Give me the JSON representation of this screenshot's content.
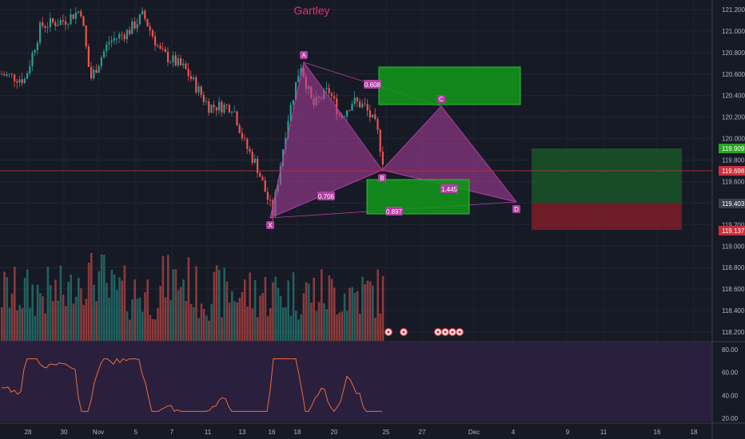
{
  "chart_data": {
    "type": "candlestick",
    "title": "Gartley",
    "pattern": {
      "name": "Gartley",
      "points": [
        {
          "label": "X",
          "x": "Nov 16",
          "y": 119.28
        },
        {
          "label": "A",
          "x": "Nov 18",
          "y": 120.75
        },
        {
          "label": "B",
          "x": "Nov 24",
          "y": 119.68
        },
        {
          "label": "C",
          "x": "Nov 28",
          "y": 120.32
        },
        {
          "label": "D",
          "x": "Dec 4",
          "y": 119.41
        }
      ],
      "ratios": [
        {
          "text": "0.608"
        },
        {
          "text": "0.706"
        },
        {
          "text": "1.445"
        },
        {
          "text": "0.897"
        }
      ]
    },
    "y_axis": {
      "ticks": [
        "121.200",
        "121.000",
        "120.800",
        "120.600",
        "120.400",
        "120.200",
        "120.000",
        "119.800",
        "119.600",
        "119.400",
        "119.200",
        "119.000",
        "118.800",
        "118.600",
        "118.400",
        "118.200"
      ],
      "badges": [
        {
          "text": "119.909",
          "color": "#26a621"
        },
        {
          "text": "119.698",
          "color": "#cc2f3c"
        },
        {
          "text": "119.403",
          "color": "#3a3f4b"
        },
        {
          "text": "119.137",
          "color": "#cc2f3c"
        }
      ]
    },
    "x_axis": {
      "ticks": [
        "28",
        "30",
        "Nov",
        "5",
        "7",
        "11",
        "13",
        "16",
        "18",
        "20",
        "25",
        "27",
        "Dec",
        "4",
        "9",
        "11",
        "16",
        "18"
      ]
    },
    "rsi": {
      "levels": [
        "80.00",
        "60.00",
        "40.00",
        "20.00"
      ]
    },
    "colors": {
      "up": "#2a9d8f",
      "down": "#ef5350",
      "pattern": "#b03fa0",
      "green_zone": "#1fa82a",
      "red_zone": "#8b1e2a"
    }
  }
}
